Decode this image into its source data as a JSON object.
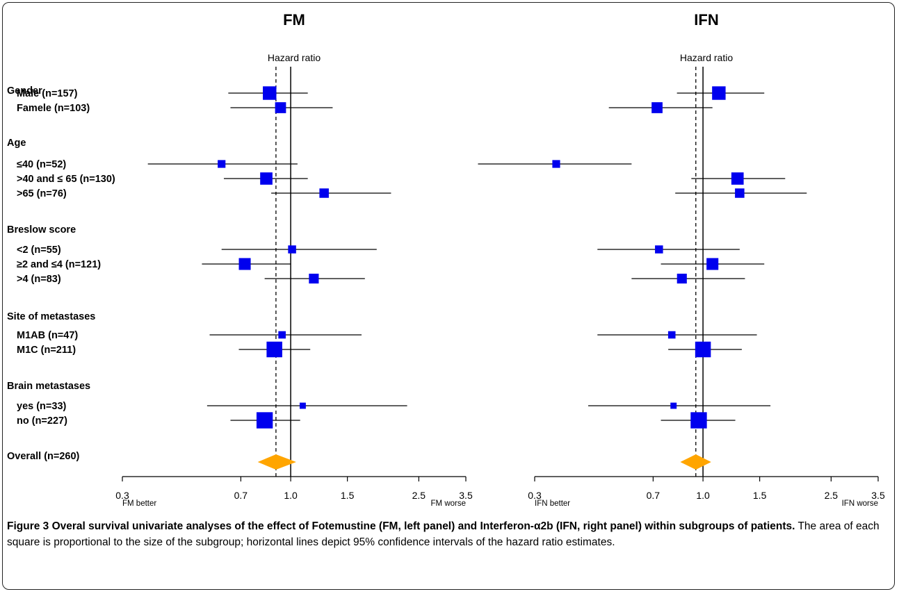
{
  "chart_data": [
    {
      "type": "forest",
      "title": "FM",
      "subtitle": "Hazard ratio",
      "x_scale": "log",
      "xlim": [
        0.3,
        3.5
      ],
      "x_ticks": [
        "0.3",
        "0.7",
        "1.0",
        "1.5",
        "2.5",
        "3.5"
      ],
      "reference_line": 1.0,
      "overall_line": 0.9,
      "left_label": "FM better",
      "right_label": "FM worse",
      "rows": [
        {
          "group": "Gender",
          "label": "Male (n=157)",
          "hr": 0.86,
          "lo": 0.64,
          "hi": 1.13
        },
        {
          "group": "Gender",
          "label": "Famele (n=103)",
          "hr": 0.93,
          "lo": 0.65,
          "hi": 1.35
        },
        {
          "group": "Age",
          "label": "≤40 (n=52)",
          "hr": 0.61,
          "lo": 0.36,
          "hi": 1.05
        },
        {
          "group": "Age",
          "label": ">40 and ≤ 65 (n=130)",
          "hr": 0.84,
          "lo": 0.62,
          "hi": 1.13
        },
        {
          "group": "Age",
          "label": ">65 (n=76)",
          "hr": 1.27,
          "lo": 0.87,
          "hi": 2.05
        },
        {
          "group": "Breslow score",
          "label": "<2 (n=55)",
          "hr": 1.01,
          "lo": 0.61,
          "hi": 1.85
        },
        {
          "group": "Breslow score",
          "label": "≥2 and ≤4 (n=121)",
          "hr": 0.72,
          "lo": 0.53,
          "hi": 1.0
        },
        {
          "group": "Breslow score",
          "label": ">4 (n=83)",
          "hr": 1.18,
          "lo": 0.83,
          "hi": 1.7
        },
        {
          "group": "Site of metastases",
          "label": "M1AB (n=47)",
          "hr": 0.94,
          "lo": 0.56,
          "hi": 1.66
        },
        {
          "group": "Site of metastases",
          "label": "M1C (n=211)",
          "hr": 0.89,
          "lo": 0.69,
          "hi": 1.15
        },
        {
          "group": "Brain metastases",
          "label": "yes (n=33)",
          "hr": 1.09,
          "lo": 0.55,
          "hi": 2.3
        },
        {
          "group": "Brain metastases",
          "label": "no (n=227)",
          "hr": 0.83,
          "lo": 0.65,
          "hi": 1.07
        }
      ],
      "overall": {
        "label": "Overall (n=260)",
        "hr": 0.9,
        "lo": 0.79,
        "hi": 1.04
      }
    },
    {
      "type": "forest",
      "title": "IFN",
      "subtitle": "Hazard ratio",
      "x_scale": "log",
      "xlim": [
        0.3,
        3.5
      ],
      "x_ticks": [
        "0.3",
        "0.7",
        "1.0",
        "1.5",
        "2.5",
        "3.5"
      ],
      "reference_line": 1.0,
      "overall_line": 0.95,
      "left_label": "IFN better",
      "right_label": "IFN worse",
      "rows": [
        {
          "group": "Gender",
          "label": "Male (n=157)",
          "hr": 1.12,
          "lo": 0.83,
          "hi": 1.55
        },
        {
          "group": "Gender",
          "label": "Famele (n=103)",
          "hr": 0.72,
          "lo": 0.51,
          "hi": 1.07
        },
        {
          "group": "Age",
          "label": "≤40 (n=52)",
          "hr": 0.35,
          "lo": 0.2,
          "hi": 0.6
        },
        {
          "group": "Age",
          "label": ">40 and ≤ 65 (n=130)",
          "hr": 1.28,
          "lo": 0.92,
          "hi": 1.8
        },
        {
          "group": "Age",
          "label": ">65 (n=76)",
          "hr": 1.3,
          "lo": 0.82,
          "hi": 2.1
        },
        {
          "group": "Breslow score",
          "label": "<2 (n=55)",
          "hr": 0.73,
          "lo": 0.47,
          "hi": 1.3
        },
        {
          "group": "Breslow score",
          "label": "≥2 and ≤4 (n=121)",
          "hr": 1.07,
          "lo": 0.74,
          "hi": 1.55
        },
        {
          "group": "Breslow score",
          "label": ">4 (n=83)",
          "hr": 0.86,
          "lo": 0.6,
          "hi": 1.35
        },
        {
          "group": "Site of metastases",
          "label": "M1AB (n=47)",
          "hr": 0.8,
          "lo": 0.47,
          "hi": 1.47
        },
        {
          "group": "Site of metastases",
          "label": "M1C (n=211)",
          "hr": 1.0,
          "lo": 0.78,
          "hi": 1.32
        },
        {
          "group": "Brain metastases",
          "label": "yes (n=33)",
          "hr": 0.81,
          "lo": 0.44,
          "hi": 1.62
        },
        {
          "group": "Brain metastases",
          "label": "no (n=227)",
          "hr": 0.97,
          "lo": 0.74,
          "hi": 1.26
        }
      ],
      "overall": {
        "label": "Overall (n=260)",
        "hr": 0.95,
        "lo": 0.85,
        "hi": 1.06
      }
    }
  ],
  "groups": [
    {
      "title": "Gender",
      "items": [
        "Male (n=157)",
        "Famele (n=103)"
      ]
    },
    {
      "title": "Age",
      "items": [
        "≤40 (n=52)",
        ">40 and ≤ 65 (n=130)",
        ">65 (n=76)"
      ]
    },
    {
      "title": "Breslow score",
      "items": [
        "<2 (n=55)",
        "≥2 and ≤4 (n=121)",
        ">4 (n=83)"
      ]
    },
    {
      "title": "Site of metastases",
      "items": [
        "M1AB (n=47)",
        "M1C (n=211)"
      ]
    },
    {
      "title": "Brain metastases",
      "items": [
        "yes (n=33)",
        "no (n=227)"
      ]
    }
  ],
  "overall_label": "Overall (n=260)",
  "colors": {
    "square": "#0000ee",
    "diamond": "#ffa500",
    "line": "#000000"
  },
  "caption": {
    "bold": "Figure 3 Overal survival univariate analyses of the effect of Fotemustine (FM, left panel) and Interferon-α2b (IFN, right panel) within subgroups of patients.",
    "text": " The area of each square is proportional to the size of the subgroup; horizontal lines depict 95% confidence intervals of the hazard ratio estimates."
  }
}
